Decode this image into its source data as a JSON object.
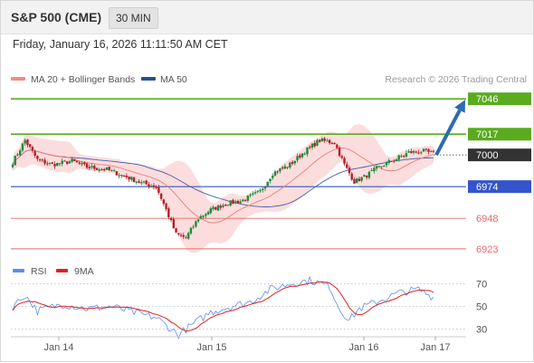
{
  "header": {
    "title": "S&P 500 (CME)",
    "timeframe": "30 MIN"
  },
  "datetime": "Friday, January 16, 2026 11:11:50 AM CET",
  "legend": {
    "ma20_bb": "MA 20 + Bollinger Bands",
    "ma50": "MA 50",
    "credit": "Research © 2026 Trading Central"
  },
  "rsi_legend": {
    "rsi": "RSI",
    "ma9": "9MA"
  },
  "colors": {
    "bull": "#1d8a3a",
    "bear": "#b41e28",
    "bollinger_fill": "#fbd2d2",
    "ma20": "#f07a7a",
    "ma50": "#4a5aa8",
    "resistance": "#5aac1e",
    "pivot": "#3355cc",
    "support": "#e86a6a",
    "arrow": "#2e6bb0",
    "last_price_box": "#333333",
    "rsi": "#5b8def",
    "rsi_ma": "#e02020"
  },
  "chart_data": [
    {
      "type": "candlestick",
      "title": "S&P 500 (CME)",
      "timeframe": "30 MIN",
      "x_labels": [
        "Jan 14",
        "Jan 15",
        "Jan 16",
        "Jan 17"
      ],
      "ylim": [
        6914,
        7058
      ],
      "price_levels": [
        {
          "value": 7046,
          "label": "7046",
          "kind": "resistance"
        },
        {
          "value": 7017,
          "label": "7017",
          "kind": "resistance"
        },
        {
          "value": 7000,
          "label": "7000",
          "kind": "last"
        },
        {
          "value": 6974,
          "label": "6974",
          "kind": "pivot"
        },
        {
          "value": 6948,
          "label": "6948",
          "kind": "support"
        },
        {
          "value": 6923,
          "label": "6923",
          "kind": "support"
        }
      ],
      "arrow": {
        "from_value": 7000,
        "to_value": 7046,
        "direction": "up"
      },
      "anchors": [
        {
          "x": 0,
          "v": 6994
        },
        {
          "x": 5,
          "v": 7012
        },
        {
          "x": 10,
          "v": 6996
        },
        {
          "x": 16,
          "v": 6992
        },
        {
          "x": 24,
          "v": 6995
        },
        {
          "x": 30,
          "v": 6990
        },
        {
          "x": 38,
          "v": 6988
        },
        {
          "x": 46,
          "v": 6982
        },
        {
          "x": 52,
          "v": 6977
        },
        {
          "x": 58,
          "v": 6974
        },
        {
          "x": 62,
          "v": 6955
        },
        {
          "x": 66,
          "v": 6935
        },
        {
          "x": 70,
          "v": 6932
        },
        {
          "x": 75,
          "v": 6948
        },
        {
          "x": 80,
          "v": 6955
        },
        {
          "x": 86,
          "v": 6960
        },
        {
          "x": 92,
          "v": 6962
        },
        {
          "x": 96,
          "v": 6966
        },
        {
          "x": 100,
          "v": 6970
        },
        {
          "x": 105,
          "v": 6985
        },
        {
          "x": 112,
          "v": 6992
        },
        {
          "x": 118,
          "v": 7003
        },
        {
          "x": 124,
          "v": 7012
        },
        {
          "x": 130,
          "v": 7010
        },
        {
          "x": 134,
          "v": 6992
        },
        {
          "x": 138,
          "v": 6978
        },
        {
          "x": 142,
          "v": 6982
        },
        {
          "x": 148,
          "v": 6990
        },
        {
          "x": 154,
          "v": 6996
        },
        {
          "x": 160,
          "v": 7002
        },
        {
          "x": 166,
          "v": 7003
        },
        {
          "x": 170,
          "v": 7001
        }
      ],
      "candle_count": 171
    },
    {
      "type": "line",
      "title": "RSI",
      "series": [
        {
          "name": "RSI"
        },
        {
          "name": "9MA"
        }
      ],
      "y_ticks": [
        70,
        50,
        30
      ],
      "ylim": [
        20,
        80
      ],
      "rsi_anchors": [
        {
          "x": 0,
          "v": 50
        },
        {
          "x": 5,
          "v": 60
        },
        {
          "x": 10,
          "v": 46
        },
        {
          "x": 20,
          "v": 52
        },
        {
          "x": 30,
          "v": 48
        },
        {
          "x": 40,
          "v": 50
        },
        {
          "x": 50,
          "v": 44
        },
        {
          "x": 58,
          "v": 40
        },
        {
          "x": 64,
          "v": 30
        },
        {
          "x": 67,
          "v": 25
        },
        {
          "x": 72,
          "v": 33
        },
        {
          "x": 80,
          "v": 45
        },
        {
          "x": 88,
          "v": 50
        },
        {
          "x": 96,
          "v": 54
        },
        {
          "x": 104,
          "v": 65
        },
        {
          "x": 112,
          "v": 70
        },
        {
          "x": 120,
          "v": 73
        },
        {
          "x": 128,
          "v": 68
        },
        {
          "x": 132,
          "v": 48
        },
        {
          "x": 136,
          "v": 38
        },
        {
          "x": 140,
          "v": 48
        },
        {
          "x": 148,
          "v": 55
        },
        {
          "x": 156,
          "v": 62
        },
        {
          "x": 164,
          "v": 65
        },
        {
          "x": 170,
          "v": 58
        }
      ]
    }
  ]
}
